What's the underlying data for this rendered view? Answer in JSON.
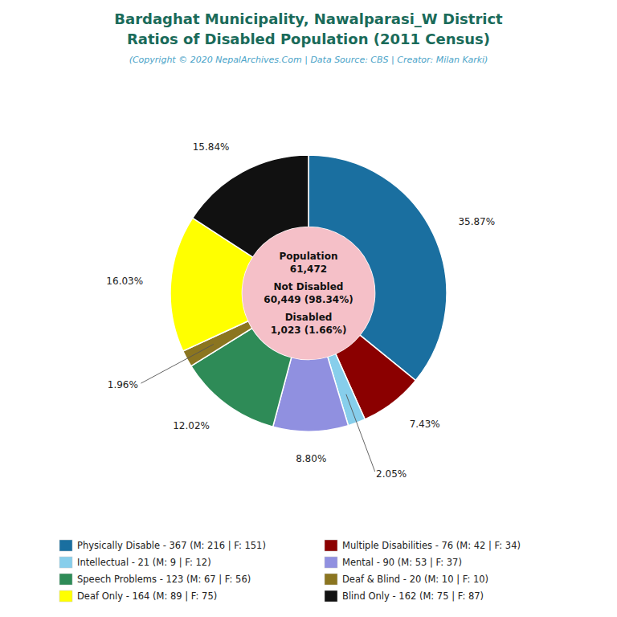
{
  "chart_data": {
    "type": "donut",
    "title": [
      "Bardaghat Municipality, Nawalparasi_W District",
      "Ratios of Disabled Population (2011 Census)"
    ],
    "subtitle": "(Copyright © 2020 NepalArchives.Com | Data Source: CBS | Creator: Milan Karki)",
    "categories": [
      "Physically Disable - 367 (M: 216 | F: 151)",
      "Multiple Disabilities - 76 (M: 42 | F: 34)",
      "Intellectual - 21 (M: 9 | F: 12)",
      "Mental - 90 (M: 53 | F: 37)",
      "Speech Problems - 123 (M: 67 | F: 56)",
      "Deaf & Blind - 20 (M: 10 | F: 10)",
      "Deaf Only - 164 (M: 89 | F: 75)",
      "Blind Only - 162 (M: 75 | F: 87)"
    ],
    "values": [
      35.87,
      7.43,
      2.05,
      8.8,
      12.02,
      1.96,
      16.03,
      15.84
    ],
    "value_labels": [
      "35.87%",
      "7.43%",
      "2.05%",
      "8.80%",
      "12.02%",
      "1.96%",
      "16.03%",
      "15.84%"
    ],
    "colors": [
      "#1a6fa0",
      "#8b0000",
      "#87ceeb",
      "#9090e0",
      "#2e8b57",
      "#8b7520",
      "#ffff00",
      "#111111"
    ],
    "data_labels": true,
    "legend": "bottom",
    "annotations": [
      "Population",
      "61,472",
      "Not Disabled",
      "60,449 (98.34%)",
      "Disabled",
      "1,023 (1.66%)"
    ]
  }
}
